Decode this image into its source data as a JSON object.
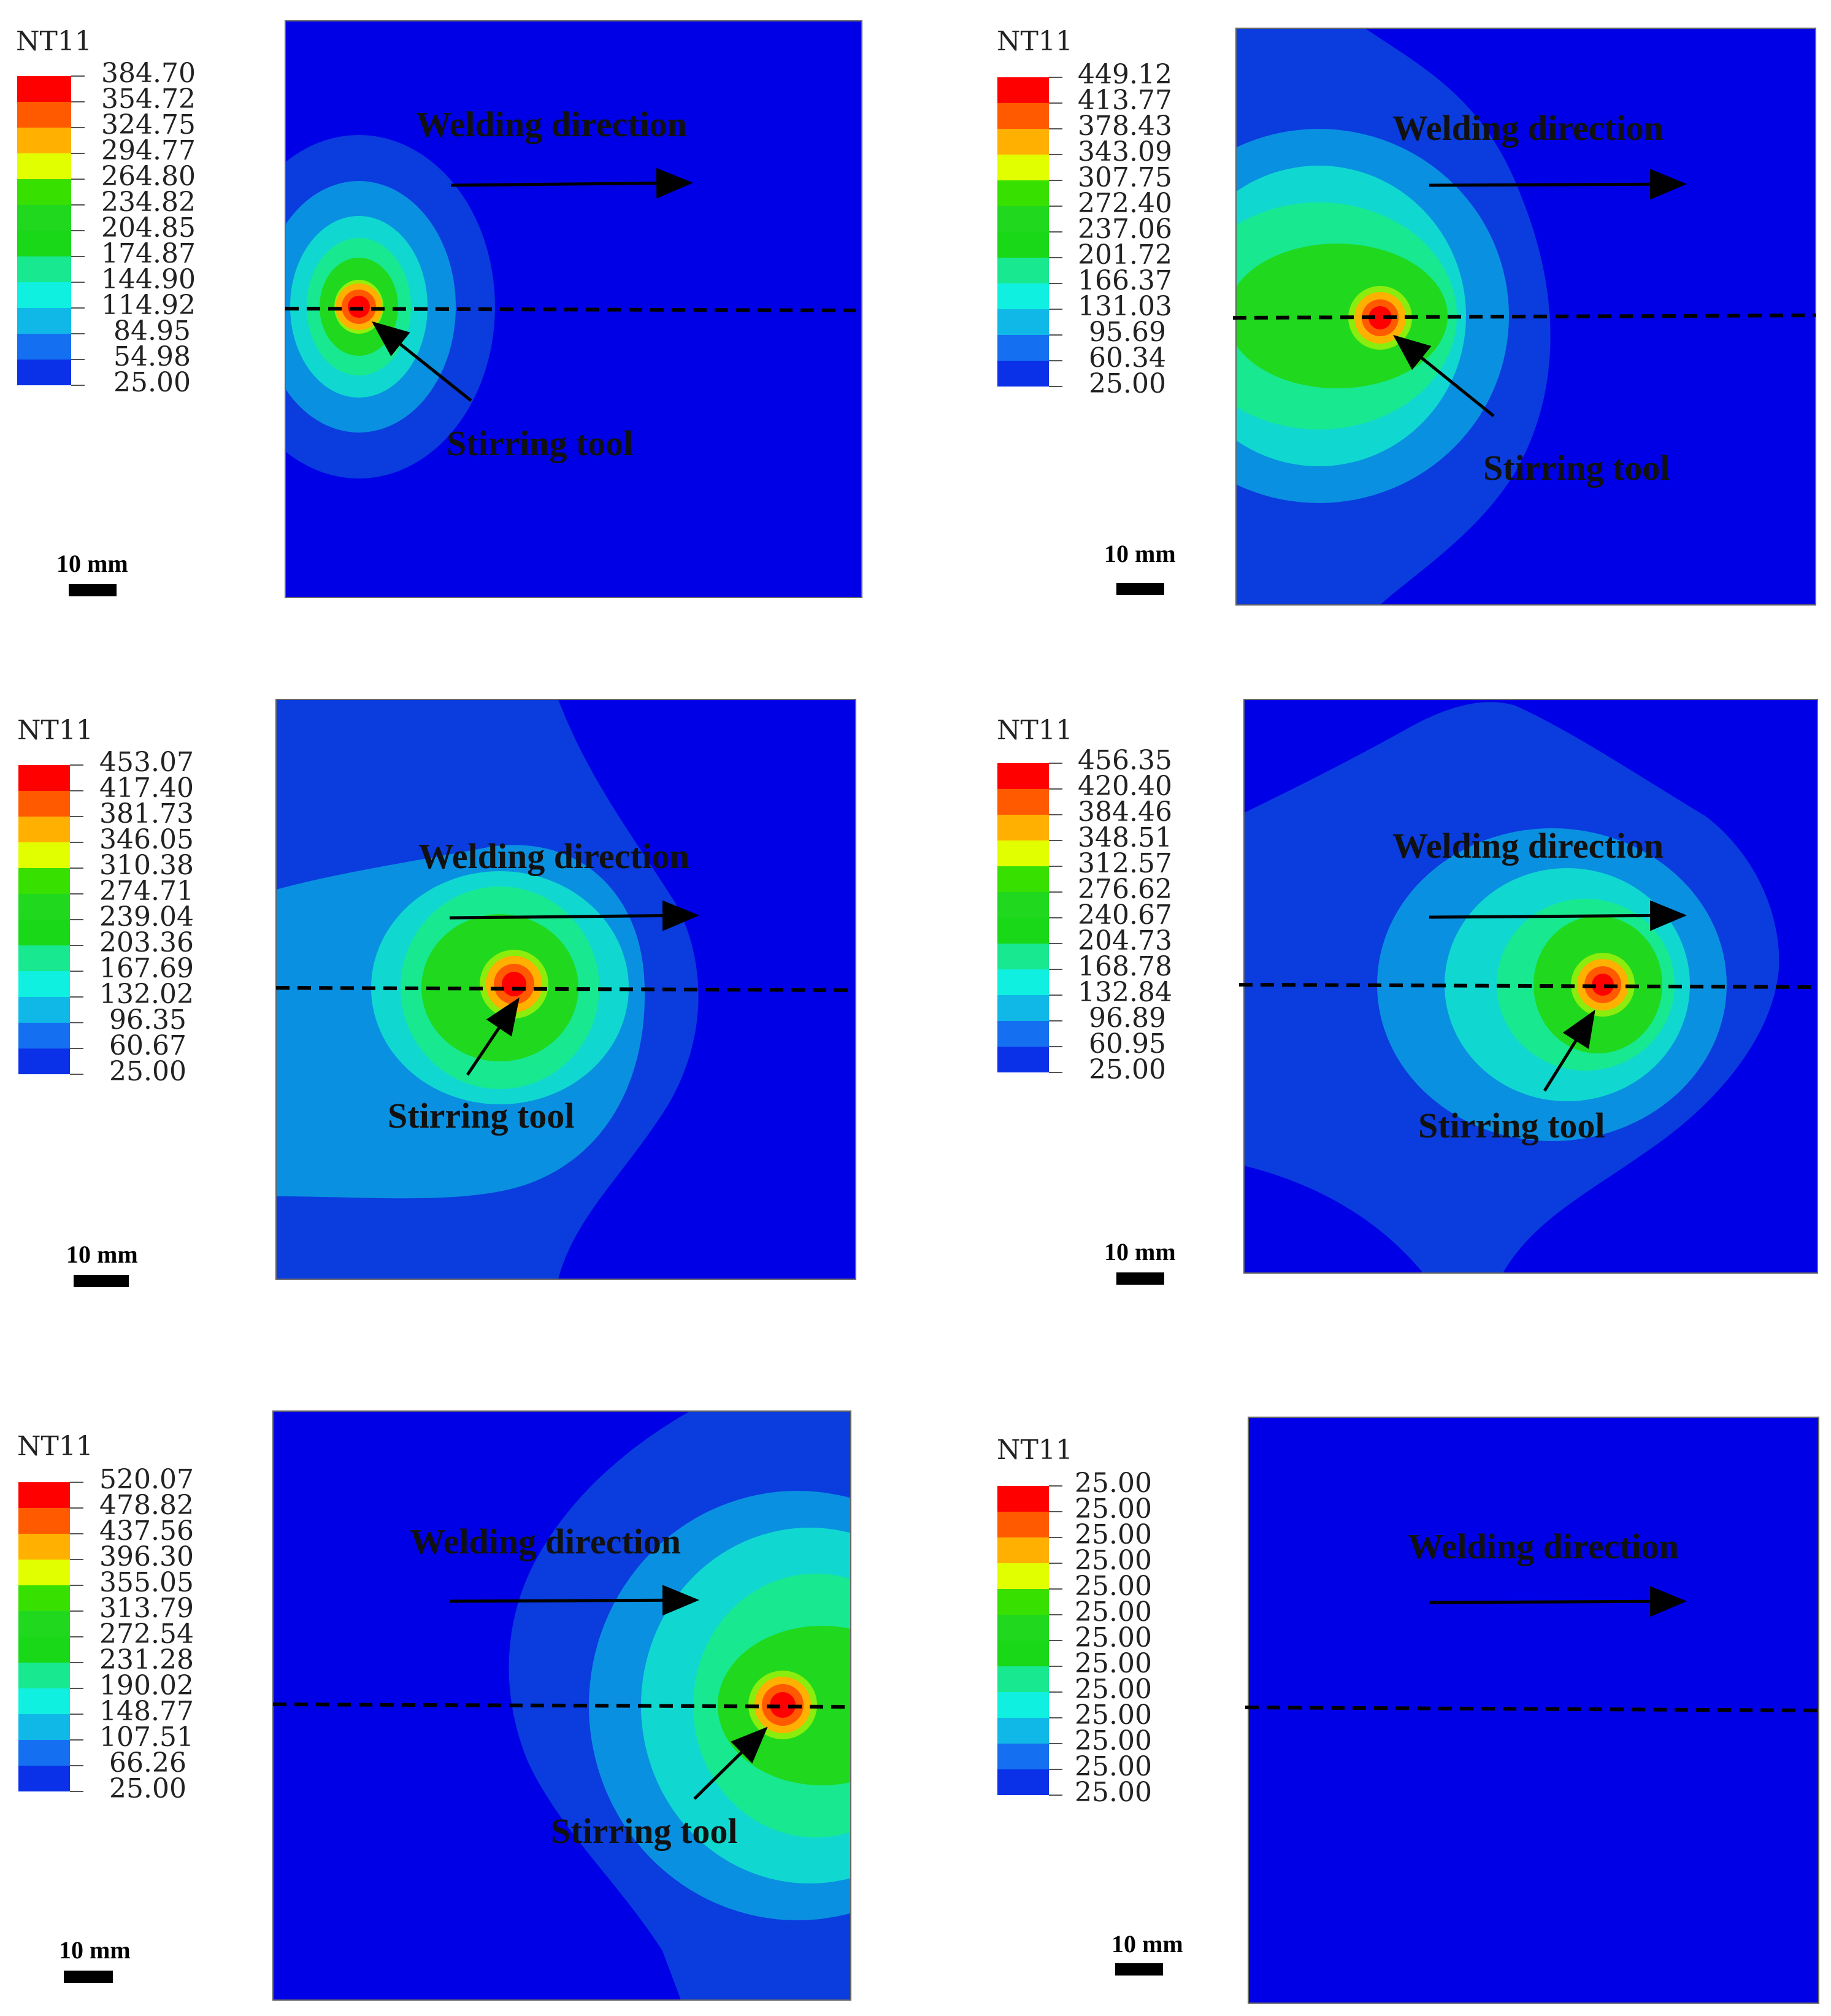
{
  "figure": {
    "panels": [
      {
        "legend_title": "NT11",
        "legend_values": [
          "384.70",
          "354.72",
          "324.75",
          "294.77",
          "264.80",
          "234.82",
          "204.85",
          "174.87",
          "144.90",
          "114.92",
          "84.95",
          "54.98",
          "25.00"
        ],
        "welding_label": "Welding direction",
        "tool_label": "Stirring tool",
        "scale_label": "10 mm"
      },
      {
        "legend_title": "NT11",
        "legend_values": [
          "449.12",
          "413.77",
          "378.43",
          "343.09",
          "307.75",
          "272.40",
          "237.06",
          "201.72",
          "166.37",
          "131.03",
          "95.69",
          "60.34",
          "25.00"
        ],
        "welding_label": "Welding direction",
        "tool_label": "Stirring tool",
        "scale_label": "10 mm"
      },
      {
        "legend_title": "NT11",
        "legend_values": [
          "453.07",
          "417.40",
          "381.73",
          "346.05",
          "310.38",
          "274.71",
          "239.04",
          "203.36",
          "167.69",
          "132.02",
          "96.35",
          "60.67",
          "25.00"
        ],
        "welding_label": "Welding direction",
        "tool_label": "Stirring tool",
        "scale_label": "10 mm"
      },
      {
        "legend_title": "NT11",
        "legend_values": [
          "456.35",
          "420.40",
          "384.46",
          "348.51",
          "312.57",
          "276.62",
          "240.67",
          "204.73",
          "168.78",
          "132.84",
          "96.89",
          "60.95",
          "25.00"
        ],
        "welding_label": "Welding direction",
        "tool_label": "Stirring tool",
        "scale_label": "10 mm"
      },
      {
        "legend_title": "NT11",
        "legend_values": [
          "520.07",
          "478.82",
          "437.56",
          "396.30",
          "355.05",
          "313.79",
          "272.54",
          "231.28",
          "190.02",
          "148.77",
          "107.51",
          "66.26",
          "25.00"
        ],
        "welding_label": "Welding direction",
        "tool_label": "Stirring tool",
        "scale_label": "10 mm"
      },
      {
        "legend_title": "NT11",
        "legend_values": [
          "25.00",
          "25.00",
          "25.00",
          "25.00",
          "25.00",
          "25.00",
          "25.00",
          "25.00",
          "25.00",
          "25.00",
          "25.00",
          "25.00",
          "25.00"
        ],
        "welding_label": "Welding direction",
        "scale_label": "10 mm"
      }
    ],
    "colors": {
      "legend_scale": [
        "#ff0000",
        "#ff5a00",
        "#ffb000",
        "#e2ff00",
        "#38e000",
        "#20d81e",
        "#18d818",
        "#18e890",
        "#10f0e0",
        "#10b8e8",
        "#1470f0",
        "#0a30e8"
      ],
      "base_blue": "#0000e6"
    }
  }
}
